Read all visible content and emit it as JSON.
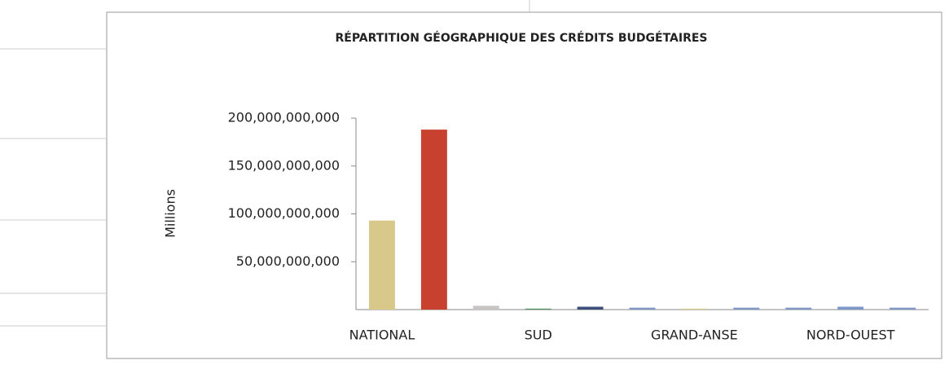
{
  "chart_data": {
    "type": "bar",
    "title": "RÉPARTITION GÉOGRAPHIQUE DES CRÉDITS BUDGÉTAIRES",
    "y_label": "Millions",
    "categories": [
      "NATIONAL",
      null,
      null,
      "SUD",
      null,
      null,
      "GRAND-ANSE",
      null,
      null,
      "NORD-OUEST",
      null
    ],
    "values": [
      93000000000,
      188000000000,
      4000000000,
      1000000000,
      3000000000,
      2000000000,
      1000000000,
      2000000000,
      2000000000,
      3000000000,
      2000000000
    ],
    "colors": [
      "#d8c98a",
      "#c8402e",
      "#c9c4c4",
      "#4e8a5a",
      "#3b4f7a",
      "#7e96c8",
      "#d8cf86",
      "#7e96c8",
      "#7e96c8",
      "#7e96c8",
      "#7e96c8"
    ],
    "ylim": [
      0,
      200000000000
    ],
    "yticks": [
      {
        "value": 50000000000,
        "label": "50,000,000,000"
      },
      {
        "value": 100000000000,
        "label": "100,000,000,000"
      },
      {
        "value": 150000000000,
        "label": "150,000,000,000"
      },
      {
        "value": 200000000000,
        "label": "200,000,000,000"
      }
    ]
  }
}
